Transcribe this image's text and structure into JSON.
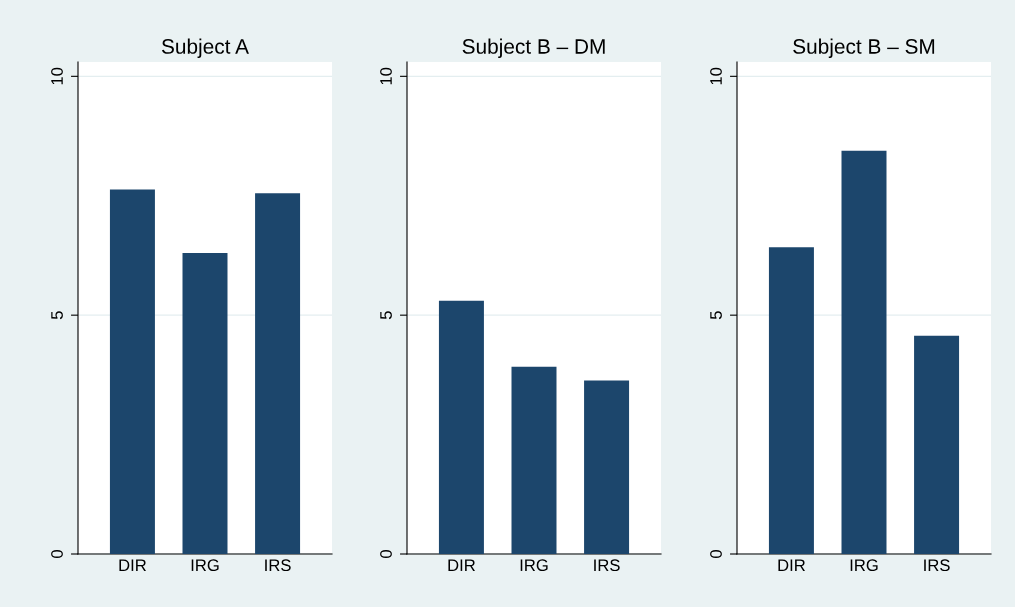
{
  "chart_data": [
    {
      "type": "bar",
      "title": "Subject A",
      "categories": [
        "DIR",
        "IRG",
        "IRS"
      ],
      "values": [
        7.63,
        6.3,
        7.55
      ],
      "color": "#1c466c",
      "ylim": [
        0,
        10.3
      ],
      "yticks": [
        0,
        5,
        10
      ],
      "grid": "y"
    },
    {
      "type": "bar",
      "title": "Subject B – DM",
      "categories": [
        "DIR",
        "IRG",
        "IRS"
      ],
      "values": [
        5.3,
        3.92,
        3.63
      ],
      "color": "#1c466c",
      "ylim": [
        0,
        10.3
      ],
      "yticks": [
        0,
        5,
        10
      ],
      "grid": "y"
    },
    {
      "type": "bar",
      "title": "Subject B – SM",
      "categories": [
        "DIR",
        "IRG",
        "IRS"
      ],
      "values": [
        6.42,
        8.44,
        4.57
      ],
      "color": "#1c466c",
      "ylim": [
        0,
        10.3
      ],
      "yticks": [
        0,
        5,
        10
      ],
      "grid": "y"
    }
  ]
}
